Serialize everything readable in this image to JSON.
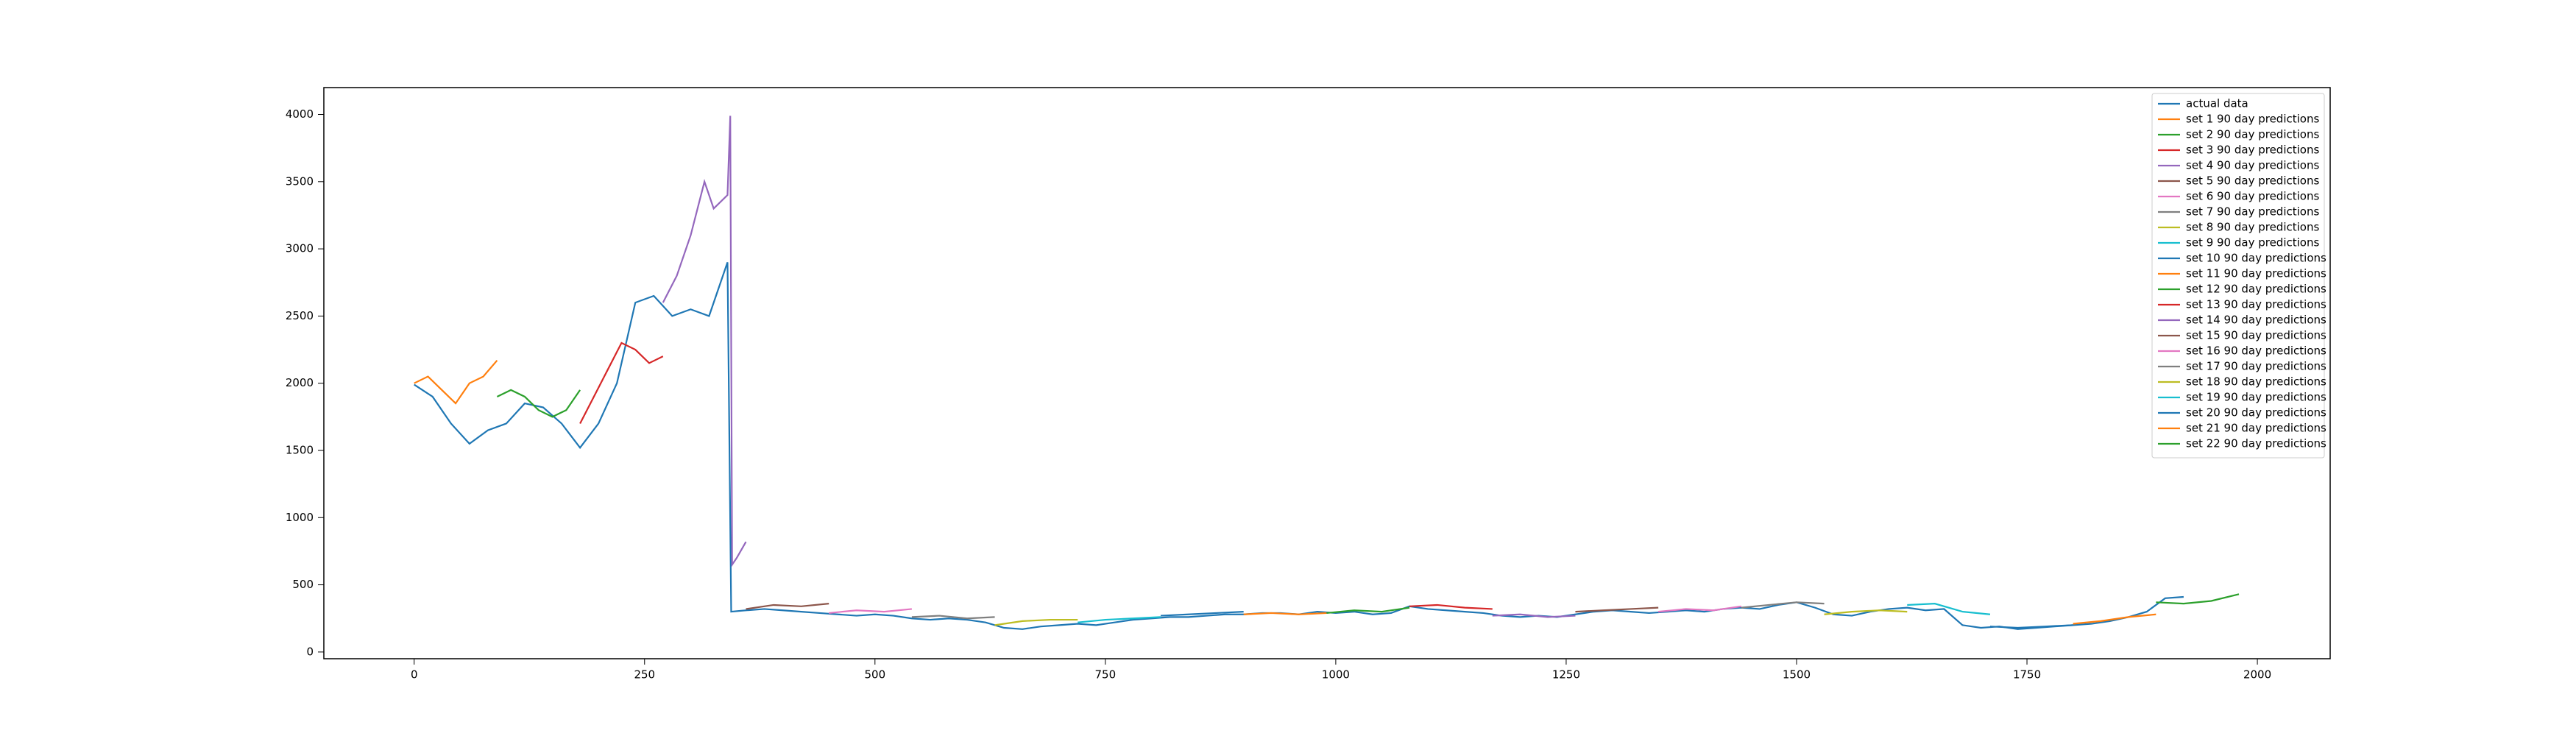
{
  "chart_data": {
    "type": "line",
    "xlim": [
      -98,
      2079
    ],
    "ylim": [
      -50,
      4200
    ],
    "xticks": [
      0,
      250,
      500,
      750,
      1000,
      1250,
      1500,
      1750,
      2000
    ],
    "yticks": [
      0,
      500,
      1000,
      1500,
      2000,
      2500,
      3000,
      3500,
      4000
    ],
    "legend": "upper right",
    "series": [
      {
        "name": "actual data",
        "color": "#1f77b4",
        "x": [
          0,
          20,
          40,
          60,
          80,
          100,
          120,
          140,
          160,
          180,
          200,
          220,
          240,
          260,
          280,
          300,
          320,
          340,
          344,
          360,
          380,
          400,
          420,
          440,
          460,
          480,
          500,
          520,
          540,
          560,
          580,
          600,
          620,
          640,
          660,
          680,
          700,
          720,
          740,
          760,
          780,
          800,
          820,
          840,
          860,
          880,
          900,
          920,
          940,
          960,
          980,
          1000,
          1020,
          1040,
          1060,
          1080,
          1100,
          1120,
          1140,
          1160,
          1180,
          1200,
          1220,
          1240,
          1260,
          1280,
          1300,
          1320,
          1340,
          1360,
          1380,
          1400,
          1420,
          1440,
          1460,
          1480,
          1500,
          1520,
          1540,
          1560,
          1580,
          1600,
          1620,
          1640,
          1660,
          1680,
          1700,
          1720,
          1740,
          1760,
          1780,
          1800,
          1820,
          1840,
          1860,
          1880,
          1900,
          1920
        ],
        "values": [
          1990,
          1900,
          1700,
          1550,
          1650,
          1700,
          1850,
          1820,
          1700,
          1520,
          1700,
          2000,
          2600,
          2650,
          2500,
          2550,
          2500,
          2900,
          300,
          310,
          320,
          310,
          300,
          290,
          280,
          270,
          280,
          270,
          250,
          240,
          250,
          240,
          220,
          180,
          170,
          190,
          200,
          210,
          200,
          220,
          240,
          250,
          260,
          260,
          270,
          280,
          280,
          290,
          290,
          280,
          300,
          290,
          300,
          280,
          290,
          340,
          320,
          310,
          300,
          290,
          270,
          260,
          270,
          260,
          280,
          300,
          310,
          300,
          290,
          300,
          310,
          300,
          320,
          330,
          320,
          350,
          370,
          330,
          280,
          270,
          300,
          320,
          330,
          310,
          320,
          200,
          180,
          190,
          170,
          180,
          190,
          200,
          210,
          230,
          260,
          300,
          400,
          410
        ]
      },
      {
        "name": "set 1 90 day predictions",
        "color": "#ff7f0e",
        "x": [
          0,
          15,
          30,
          45,
          60,
          75,
          90
        ],
        "values": [
          2000,
          2050,
          1950,
          1850,
          2000,
          2050,
          2170
        ]
      },
      {
        "name": "set 2 90 day predictions",
        "color": "#2ca02c",
        "x": [
          90,
          105,
          120,
          135,
          150,
          165,
          180
        ],
        "values": [
          1900,
          1950,
          1900,
          1800,
          1750,
          1800,
          1950
        ]
      },
      {
        "name": "set 3 90 day predictions",
        "color": "#d62728",
        "x": [
          180,
          195,
          210,
          225,
          240,
          255,
          270
        ],
        "values": [
          1700,
          1900,
          2100,
          2300,
          2250,
          2150,
          2200
        ]
      },
      {
        "name": "set 4 90 day predictions",
        "color": "#9467bd",
        "x": [
          270,
          285,
          300,
          315,
          325,
          340,
          343,
          345,
          350,
          360
        ],
        "values": [
          2600,
          2800,
          3100,
          3500,
          3300,
          3400,
          3990,
          650,
          700,
          820
        ]
      },
      {
        "name": "set 5 90 day predictions",
        "color": "#8c564b",
        "x": [
          360,
          390,
          420,
          450
        ],
        "values": [
          320,
          350,
          340,
          360
        ]
      },
      {
        "name": "set 6 90 day predictions",
        "color": "#e377c2",
        "x": [
          450,
          480,
          510,
          540
        ],
        "values": [
          290,
          310,
          300,
          320
        ]
      },
      {
        "name": "set 7 90 day predictions",
        "color": "#7f7f7f",
        "x": [
          540,
          570,
          600,
          630
        ],
        "values": [
          260,
          270,
          250,
          260
        ]
      },
      {
        "name": "set 8 90 day predictions",
        "color": "#bcbd22",
        "x": [
          630,
          660,
          690,
          720
        ],
        "values": [
          200,
          230,
          240,
          240
        ]
      },
      {
        "name": "set 9 90 day predictions",
        "color": "#17becf",
        "x": [
          720,
          750,
          780,
          810
        ],
        "values": [
          220,
          240,
          250,
          260
        ]
      },
      {
        "name": "set 10 90 day predictions",
        "color": "#1f77b4",
        "x": [
          810,
          840,
          870,
          900
        ],
        "values": [
          270,
          280,
          290,
          300
        ]
      },
      {
        "name": "set 11 90 day predictions",
        "color": "#ff7f0e",
        "x": [
          900,
          930,
          960,
          990
        ],
        "values": [
          280,
          290,
          280,
          290
        ]
      },
      {
        "name": "set 12 90 day predictions",
        "color": "#2ca02c",
        "x": [
          990,
          1020,
          1050,
          1080
        ],
        "values": [
          290,
          310,
          300,
          330
        ]
      },
      {
        "name": "set 13 90 day predictions",
        "color": "#d62728",
        "x": [
          1080,
          1110,
          1140,
          1170
        ],
        "values": [
          340,
          350,
          330,
          320
        ]
      },
      {
        "name": "set 14 90 day predictions",
        "color": "#9467bd",
        "x": [
          1170,
          1200,
          1230,
          1260
        ],
        "values": [
          270,
          280,
          260,
          270
        ]
      },
      {
        "name": "set 15 90 day predictions",
        "color": "#8c564b",
        "x": [
          1260,
          1290,
          1320,
          1350
        ],
        "values": [
          300,
          310,
          320,
          330
        ]
      },
      {
        "name": "set 16 90 day predictions",
        "color": "#e377c2",
        "x": [
          1350,
          1380,
          1410,
          1440
        ],
        "values": [
          300,
          320,
          310,
          340
        ]
      },
      {
        "name": "set 17 90 day predictions",
        "color": "#7f7f7f",
        "x": [
          1440,
          1470,
          1500,
          1530
        ],
        "values": [
          330,
          350,
          370,
          360
        ]
      },
      {
        "name": "set 18 90 day predictions",
        "color": "#bcbd22",
        "x": [
          1530,
          1560,
          1590,
          1620
        ],
        "values": [
          280,
          300,
          310,
          300
        ]
      },
      {
        "name": "set 19 90 day predictions",
        "color": "#17becf",
        "x": [
          1620,
          1650,
          1680,
          1710
        ],
        "values": [
          350,
          360,
          300,
          280
        ]
      },
      {
        "name": "set 20 90 day predictions",
        "color": "#1f77b4",
        "x": [
          1710,
          1740,
          1770,
          1800
        ],
        "values": [
          190,
          180,
          190,
          200
        ]
      },
      {
        "name": "set 21 90 day predictions",
        "color": "#ff7f0e",
        "x": [
          1800,
          1830,
          1860,
          1890
        ],
        "values": [
          210,
          230,
          260,
          280
        ]
      },
      {
        "name": "set 22 90 day predictions",
        "color": "#2ca02c",
        "x": [
          1890,
          1920,
          1950,
          1980
        ],
        "values": [
          370,
          360,
          380,
          430
        ]
      }
    ]
  }
}
